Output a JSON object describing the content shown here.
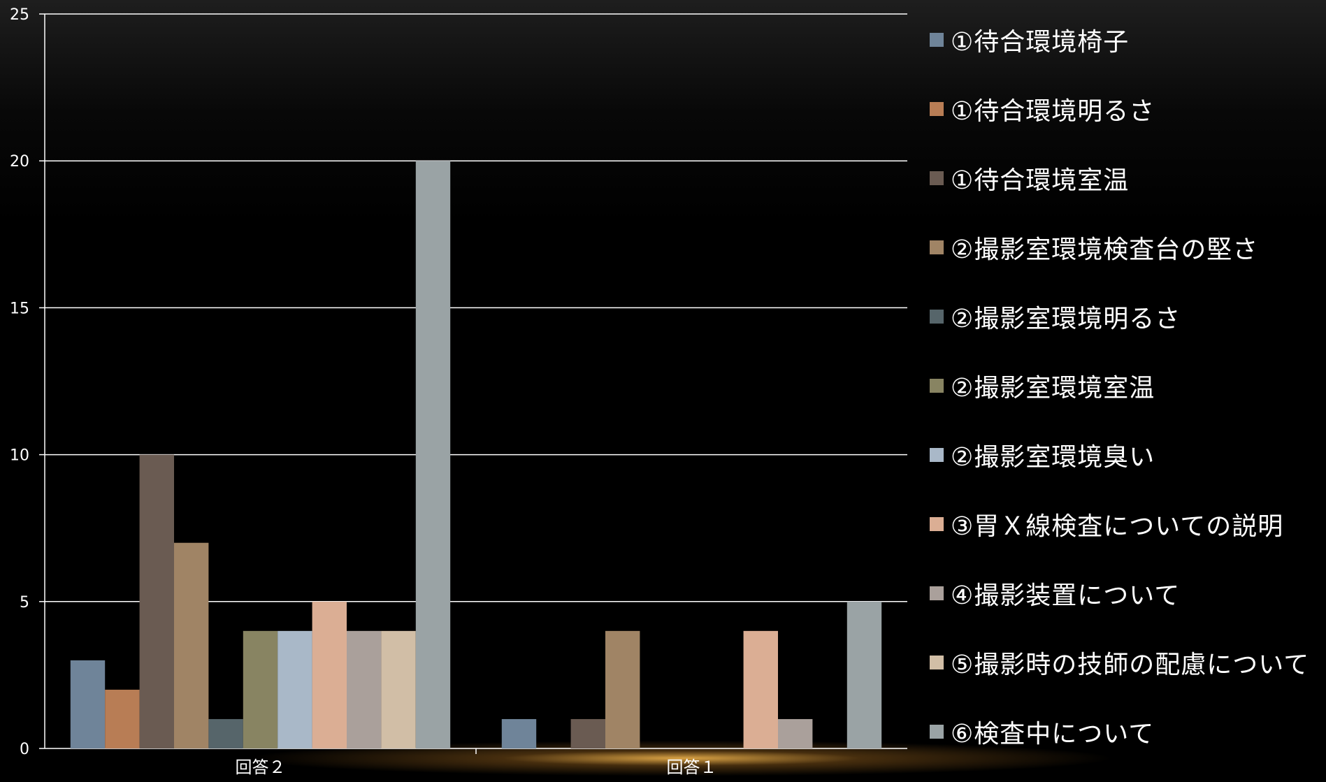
{
  "chart_data": {
    "type": "bar",
    "categories": [
      "回答２",
      "回答１"
    ],
    "ylim": [
      0,
      25
    ],
    "yticks": [
      0,
      5,
      10,
      15,
      20,
      25
    ],
    "grid": true,
    "legend_position": "right",
    "title": "",
    "xlabel": "",
    "ylabel": "",
    "series": [
      {
        "name": "①待合環境椅子",
        "color": "#6f8499",
        "values": [
          3,
          1
        ]
      },
      {
        "name": "①待合環境明るさ",
        "color": "#b87d55",
        "values": [
          2,
          0
        ]
      },
      {
        "name": "①待合環境室温",
        "color": "#6a5b52",
        "values": [
          10,
          1
        ]
      },
      {
        "name": "②撮影室環境検査台の堅さ",
        "color": "#a08465",
        "values": [
          7,
          4
        ]
      },
      {
        "name": "②撮影室環境明るさ",
        "color": "#56656a",
        "values": [
          1,
          0
        ]
      },
      {
        "name": "②撮影室環境室温",
        "color": "#888462",
        "values": [
          4,
          0
        ]
      },
      {
        "name": "②撮影室環境臭い",
        "color": "#a9b8c8",
        "values": [
          4,
          0
        ]
      },
      {
        "name": "③胃Ｘ線検査についての説明",
        "color": "#dbae94",
        "values": [
          5,
          4
        ]
      },
      {
        "name": "④撮影装置について",
        "color": "#aaa09b",
        "values": [
          4,
          1
        ]
      },
      {
        "name": "⑤撮影時の技師の配慮について",
        "color": "#d1bea6",
        "values": [
          4,
          0
        ]
      },
      {
        "name": "⑥検査中について",
        "color": "#9aa3a5",
        "values": [
          20,
          5
        ]
      }
    ]
  }
}
